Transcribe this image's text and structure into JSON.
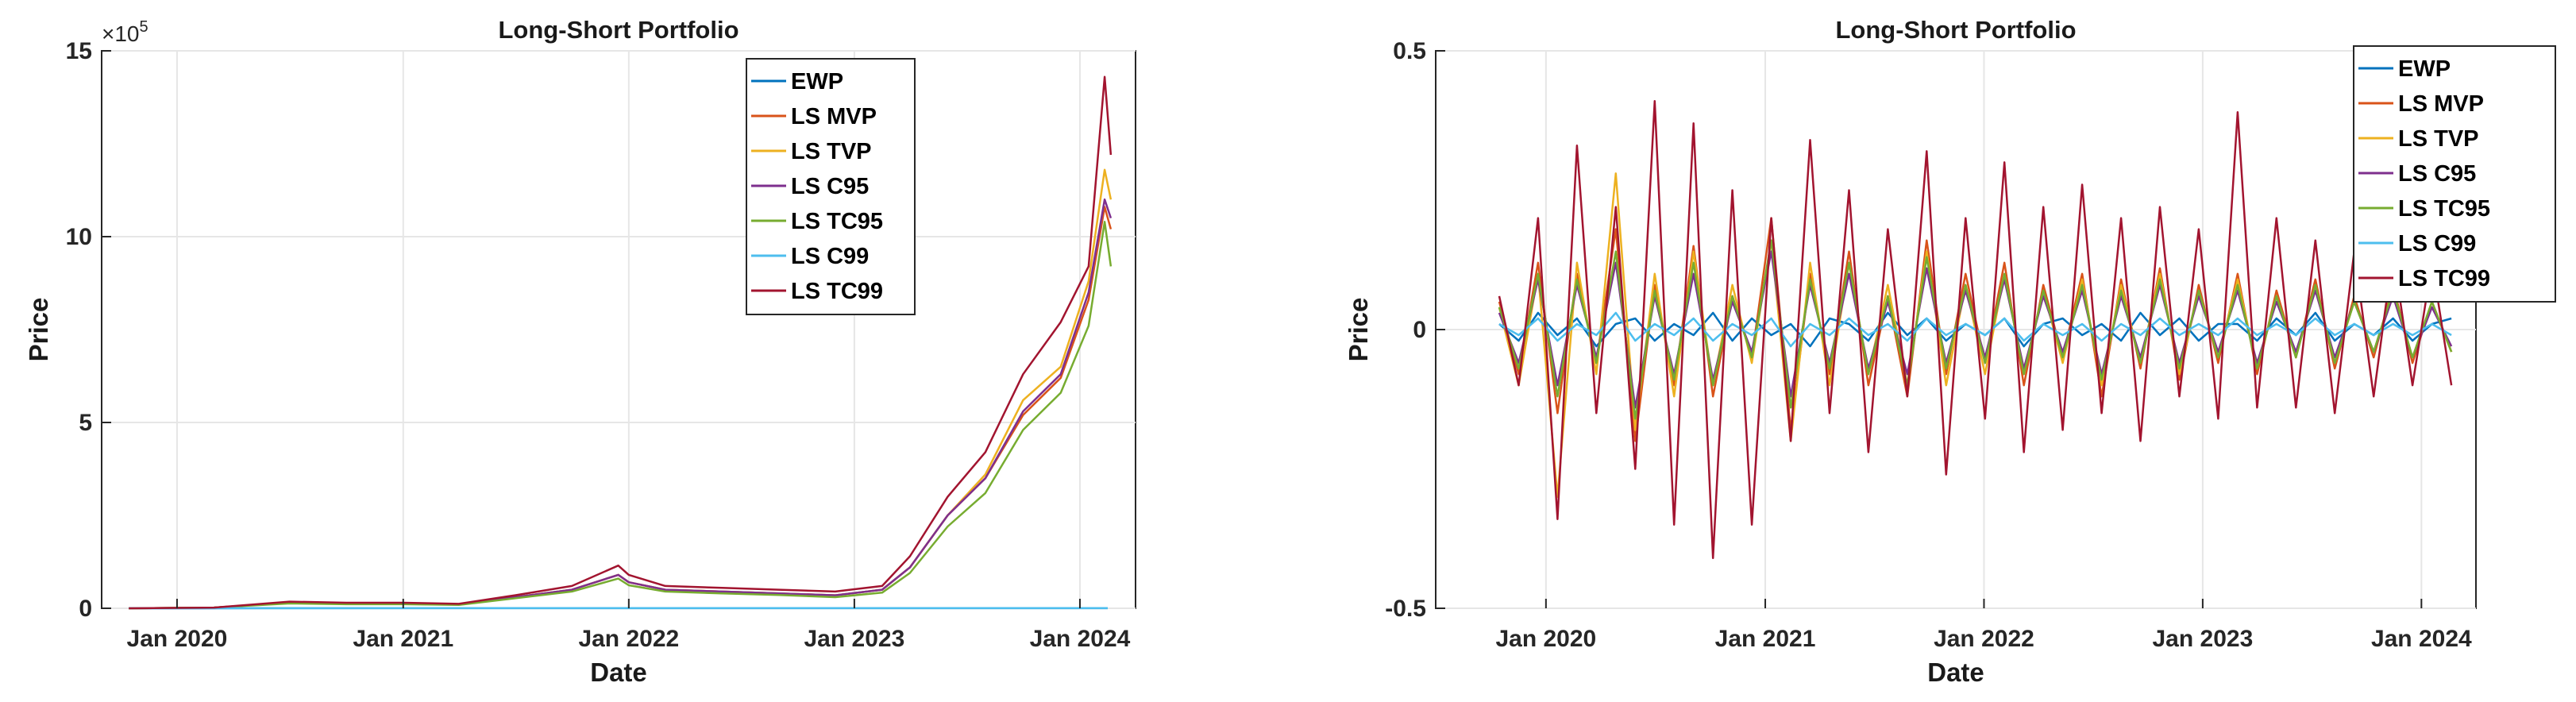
{
  "chart_data": [
    {
      "type": "line",
      "title": "Long-Short Portfolio",
      "xlabel": "Date",
      "ylabel": "Price",
      "y_exponent_label": "×10",
      "y_exponent": "5",
      "ylim": [
        0,
        15
      ],
      "yticks": [
        0,
        5,
        10,
        15
      ],
      "ytick_labels": [
        "0",
        "5",
        "10",
        "15"
      ],
      "xlim": [
        "2019-09-01",
        "2024-03-31"
      ],
      "xticks": [
        "2020-01-01",
        "2021-01-01",
        "2022-01-01",
        "2023-01-01",
        "2024-01-01"
      ],
      "xtick_labels": [
        "Jan 2020",
        "Jan 2021",
        "Jan 2022",
        "Jan 2023",
        "Jan 2024"
      ],
      "grid": true,
      "legend_position": "top-right",
      "series": [
        {
          "name": "EWP",
          "color": "#0072BD",
          "x": [
            "2019-10-15",
            "2020-06-01",
            "2021-01-01",
            "2022-01-01",
            "2023-01-01",
            "2024-01-01",
            "2024-02-15"
          ],
          "y": [
            0.001,
            0.002,
            0.002,
            0.003,
            0.003,
            0.003,
            0.003
          ]
        },
        {
          "name": "LS MVP",
          "color": "#D95319",
          "x": [
            "2019-10-15",
            "2020-03-01",
            "2020-07-01",
            "2020-10-01",
            "2021-01-01",
            "2021-04-01",
            "2021-07-01",
            "2021-10-01",
            "2021-12-15",
            "2022-01-01",
            "2022-03-01",
            "2022-06-01",
            "2022-09-01",
            "2022-12-01",
            "2023-02-15",
            "2023-04-01",
            "2023-06-01",
            "2023-08-01",
            "2023-10-01",
            "2023-12-01",
            "2024-01-15",
            "2024-02-10",
            "2024-02-20"
          ],
          "y": [
            0,
            0.02,
            0.15,
            0.12,
            0.12,
            0.1,
            0.3,
            0.5,
            0.9,
            0.7,
            0.5,
            0.45,
            0.4,
            0.35,
            0.5,
            1.1,
            2.5,
            3.5,
            5.2,
            6.2,
            8.3,
            10.8,
            10.2
          ]
        },
        {
          "name": "LS TVP",
          "color": "#EDB120",
          "x": [
            "2019-10-15",
            "2020-03-01",
            "2020-07-01",
            "2020-10-01",
            "2021-01-01",
            "2021-04-01",
            "2021-07-01",
            "2021-10-01",
            "2021-12-15",
            "2022-01-01",
            "2022-03-01",
            "2022-06-01",
            "2022-09-01",
            "2022-12-01",
            "2023-02-15",
            "2023-04-01",
            "2023-06-01",
            "2023-08-01",
            "2023-10-01",
            "2023-12-01",
            "2024-01-15",
            "2024-02-10",
            "2024-02-20"
          ],
          "y": [
            0,
            0.02,
            0.15,
            0.12,
            0.12,
            0.1,
            0.3,
            0.5,
            0.9,
            0.7,
            0.5,
            0.45,
            0.4,
            0.35,
            0.5,
            1.1,
            2.5,
            3.6,
            5.6,
            6.5,
            8.8,
            11.8,
            11.0
          ]
        },
        {
          "name": "LS C95",
          "color": "#7E2F8E",
          "x": [
            "2019-10-15",
            "2020-03-01",
            "2020-07-01",
            "2020-10-01",
            "2021-01-01",
            "2021-04-01",
            "2021-07-01",
            "2021-10-01",
            "2021-12-15",
            "2022-01-01",
            "2022-03-01",
            "2022-06-01",
            "2022-09-01",
            "2022-12-01",
            "2023-02-15",
            "2023-04-01",
            "2023-06-01",
            "2023-08-01",
            "2023-10-01",
            "2023-12-01",
            "2024-01-15",
            "2024-02-10",
            "2024-02-20"
          ],
          "y": [
            0,
            0.02,
            0.15,
            0.12,
            0.12,
            0.1,
            0.3,
            0.5,
            0.9,
            0.7,
            0.5,
            0.45,
            0.4,
            0.35,
            0.5,
            1.1,
            2.5,
            3.5,
            5.3,
            6.3,
            8.5,
            11.0,
            10.5
          ]
        },
        {
          "name": "LS TC95",
          "color": "#77AC30",
          "x": [
            "2019-10-15",
            "2020-03-01",
            "2020-07-01",
            "2020-10-01",
            "2021-01-01",
            "2021-04-01",
            "2021-07-01",
            "2021-10-01",
            "2021-12-15",
            "2022-01-01",
            "2022-03-01",
            "2022-06-01",
            "2022-09-01",
            "2022-12-01",
            "2023-02-15",
            "2023-04-01",
            "2023-06-01",
            "2023-08-01",
            "2023-10-01",
            "2023-12-01",
            "2024-01-15",
            "2024-02-10",
            "2024-02-20"
          ],
          "y": [
            0,
            0.02,
            0.13,
            0.11,
            0.11,
            0.09,
            0.27,
            0.45,
            0.8,
            0.62,
            0.45,
            0.4,
            0.36,
            0.3,
            0.42,
            0.95,
            2.2,
            3.1,
            4.8,
            5.8,
            7.6,
            10.4,
            9.2
          ]
        },
        {
          "name": "LS C99",
          "color": "#4DBEEE",
          "x": [
            "2019-10-15",
            "2020-06-01",
            "2021-01-01",
            "2022-01-01",
            "2023-01-01",
            "2024-01-01",
            "2024-02-15"
          ],
          "y": [
            0.002,
            0.003,
            0.004,
            0.004,
            0.005,
            0.005,
            0.005
          ]
        },
        {
          "name": "LS TC99",
          "color": "#A2142F",
          "x": [
            "2019-10-15",
            "2020-03-01",
            "2020-07-01",
            "2020-10-01",
            "2021-01-01",
            "2021-04-01",
            "2021-07-01",
            "2021-10-01",
            "2021-12-15",
            "2022-01-01",
            "2022-03-01",
            "2022-06-01",
            "2022-09-01",
            "2022-12-01",
            "2023-02-15",
            "2023-04-01",
            "2023-06-01",
            "2023-08-01",
            "2023-10-01",
            "2023-12-01",
            "2024-01-15",
            "2024-02-10",
            "2024-02-20"
          ],
          "y": [
            0,
            0.02,
            0.18,
            0.15,
            0.15,
            0.12,
            0.35,
            0.6,
            1.15,
            0.9,
            0.6,
            0.55,
            0.5,
            0.45,
            0.6,
            1.4,
            3.0,
            4.2,
            6.3,
            7.7,
            9.2,
            14.3,
            12.2
          ]
        }
      ]
    },
    {
      "type": "line",
      "title": "Long-Short Portfolio",
      "xlabel": "Date",
      "ylabel": "Price",
      "ylim": [
        -0.5,
        0.5
      ],
      "yticks": [
        -0.5,
        0,
        0.5
      ],
      "ytick_labels": [
        "-0.5",
        "0",
        "0.5"
      ],
      "xlim": [
        "2019-07-01",
        "2024-04-01"
      ],
      "xticks": [
        "2020-01-01",
        "2021-01-01",
        "2022-01-01",
        "2023-01-01",
        "2024-01-01"
      ],
      "xtick_labels": [
        "Jan 2020",
        "Jan 2021",
        "Jan 2022",
        "Jan 2023",
        "Jan 2024"
      ],
      "grid": true,
      "legend_position": "top-right",
      "series": [
        {
          "name": "EWP",
          "color": "#0072BD",
          "x_start": "2019-10-15",
          "x_end": "2024-02-20",
          "y": [
            0.01,
            -0.02,
            0.03,
            -0.01,
            0.02,
            -0.03,
            0.01,
            0.02,
            -0.02,
            0.01,
            -0.01,
            0.03,
            -0.02,
            0.02,
            -0.01,
            0.01,
            -0.03,
            0.02,
            0.01,
            -0.02,
            0.03,
            -0.01,
            0.02,
            -0.02,
            0.01,
            -0.01,
            0.02,
            -0.03,
            0.01,
            0.02,
            -0.01,
            0.01,
            -0.02,
            0.03,
            -0.01,
            0.02,
            -0.02,
            0.01,
            0.01,
            -0.02,
            0.02,
            -0.01,
            0.03,
            -0.02,
            0.01,
            -0.01,
            0.02,
            -0.02,
            0.01,
            0.02
          ]
        },
        {
          "name": "LS MVP",
          "color": "#D95319",
          "x_start": "2019-10-15",
          "x_end": "2024-02-20",
          "y": [
            0.05,
            -0.08,
            0.12,
            -0.15,
            0.1,
            -0.06,
            0.18,
            -0.2,
            0.08,
            -0.1,
            0.15,
            -0.12,
            0.06,
            -0.05,
            0.2,
            -0.18,
            0.1,
            -0.08,
            0.14,
            -0.1,
            0.06,
            -0.12,
            0.16,
            -0.08,
            0.1,
            -0.06,
            0.12,
            -0.1,
            0.08,
            -0.05,
            0.1,
            -0.12,
            0.09,
            -0.07,
            0.11,
            -0.09,
            0.08,
            -0.06,
            0.1,
            -0.08,
            0.07,
            -0.05,
            0.09,
            -0.07,
            0.06,
            -0.05,
            0.08,
            -0.06,
            0.05,
            -0.04
          ]
        },
        {
          "name": "LS TVP",
          "color": "#EDB120",
          "x_start": "2019-10-15",
          "x_end": "2024-02-20",
          "y": [
            0.04,
            -0.1,
            0.1,
            -0.3,
            0.12,
            -0.08,
            0.28,
            -0.18,
            0.1,
            -0.12,
            0.14,
            -0.1,
            0.08,
            -0.06,
            0.16,
            -0.2,
            0.12,
            -0.1,
            0.12,
            -0.08,
            0.08,
            -0.1,
            0.14,
            -0.1,
            0.08,
            -0.08,
            0.1,
            -0.08,
            0.07,
            -0.06,
            0.09,
            -0.1,
            0.08,
            -0.06,
            0.1,
            -0.08,
            0.07,
            -0.05,
            0.09,
            -0.07,
            0.06,
            -0.05,
            0.08,
            -0.06,
            0.05,
            -0.04,
            0.07,
            -0.05,
            0.05,
            -0.04
          ]
        },
        {
          "name": "LS C95",
          "color": "#7E2F8E",
          "x_start": "2019-10-15",
          "x_end": "2024-02-20",
          "y": [
            0.03,
            -0.06,
            0.09,
            -0.1,
            0.08,
            -0.05,
            0.12,
            -0.14,
            0.06,
            -0.08,
            0.1,
            -0.09,
            0.05,
            -0.04,
            0.14,
            -0.12,
            0.08,
            -0.06,
            0.1,
            -0.07,
            0.05,
            -0.08,
            0.11,
            -0.06,
            0.07,
            -0.05,
            0.09,
            -0.07,
            0.06,
            -0.04,
            0.07,
            -0.08,
            0.06,
            -0.05,
            0.08,
            -0.06,
            0.06,
            -0.04,
            0.07,
            -0.06,
            0.05,
            -0.04,
            0.07,
            -0.05,
            0.05,
            -0.04,
            0.06,
            -0.05,
            0.04,
            -0.03
          ]
        },
        {
          "name": "LS TC95",
          "color": "#77AC30",
          "x_start": "2019-10-15",
          "x_end": "2024-02-20",
          "y": [
            0.04,
            -0.07,
            0.1,
            -0.12,
            0.09,
            -0.06,
            0.14,
            -0.16,
            0.07,
            -0.09,
            0.12,
            -0.1,
            0.06,
            -0.05,
            0.16,
            -0.14,
            0.09,
            -0.07,
            0.12,
            -0.08,
            0.06,
            -0.1,
            0.13,
            -0.07,
            0.08,
            -0.06,
            0.1,
            -0.08,
            0.07,
            -0.05,
            0.08,
            -0.09,
            0.07,
            -0.06,
            0.09,
            -0.07,
            0.07,
            -0.05,
            0.08,
            -0.07,
            0.06,
            -0.05,
            0.08,
            -0.06,
            0.05,
            -0.04,
            0.07,
            -0.05,
            0.05,
            -0.04
          ]
        },
        {
          "name": "LS C99",
          "color": "#4DBEEE",
          "x_start": "2019-10-15",
          "x_end": "2024-02-20",
          "y": [
            0.01,
            -0.01,
            0.02,
            -0.02,
            0.01,
            -0.01,
            0.03,
            -0.02,
            0.01,
            -0.01,
            0.02,
            -0.02,
            0.01,
            -0.01,
            0.02,
            -0.03,
            0.01,
            -0.01,
            0.02,
            -0.01,
            0.01,
            -0.02,
            0.02,
            -0.01,
            0.01,
            -0.01,
            0.02,
            -0.02,
            0.01,
            -0.01,
            0.01,
            -0.02,
            0.01,
            -0.01,
            0.02,
            -0.01,
            0.01,
            -0.01,
            0.02,
            -0.01,
            0.01,
            -0.01,
            0.02,
            -0.01,
            0.01,
            -0.01,
            0.01,
            -0.01,
            0.01,
            -0.01
          ]
        },
        {
          "name": "LS TC99",
          "color": "#A2142F",
          "x_start": "2019-10-15",
          "x_end": "2024-02-20",
          "y": [
            0.06,
            -0.1,
            0.2,
            -0.34,
            0.33,
            -0.15,
            0.22,
            -0.25,
            0.41,
            -0.35,
            0.37,
            -0.41,
            0.25,
            -0.35,
            0.2,
            -0.2,
            0.34,
            -0.15,
            0.25,
            -0.22,
            0.18,
            -0.12,
            0.32,
            -0.26,
            0.2,
            -0.16,
            0.3,
            -0.22,
            0.22,
            -0.18,
            0.26,
            -0.15,
            0.2,
            -0.2,
            0.22,
            -0.12,
            0.18,
            -0.16,
            0.39,
            -0.14,
            0.2,
            -0.14,
            0.16,
            -0.15,
            0.14,
            -0.12,
            0.14,
            -0.1,
            0.12,
            -0.1
          ]
        }
      ]
    }
  ]
}
